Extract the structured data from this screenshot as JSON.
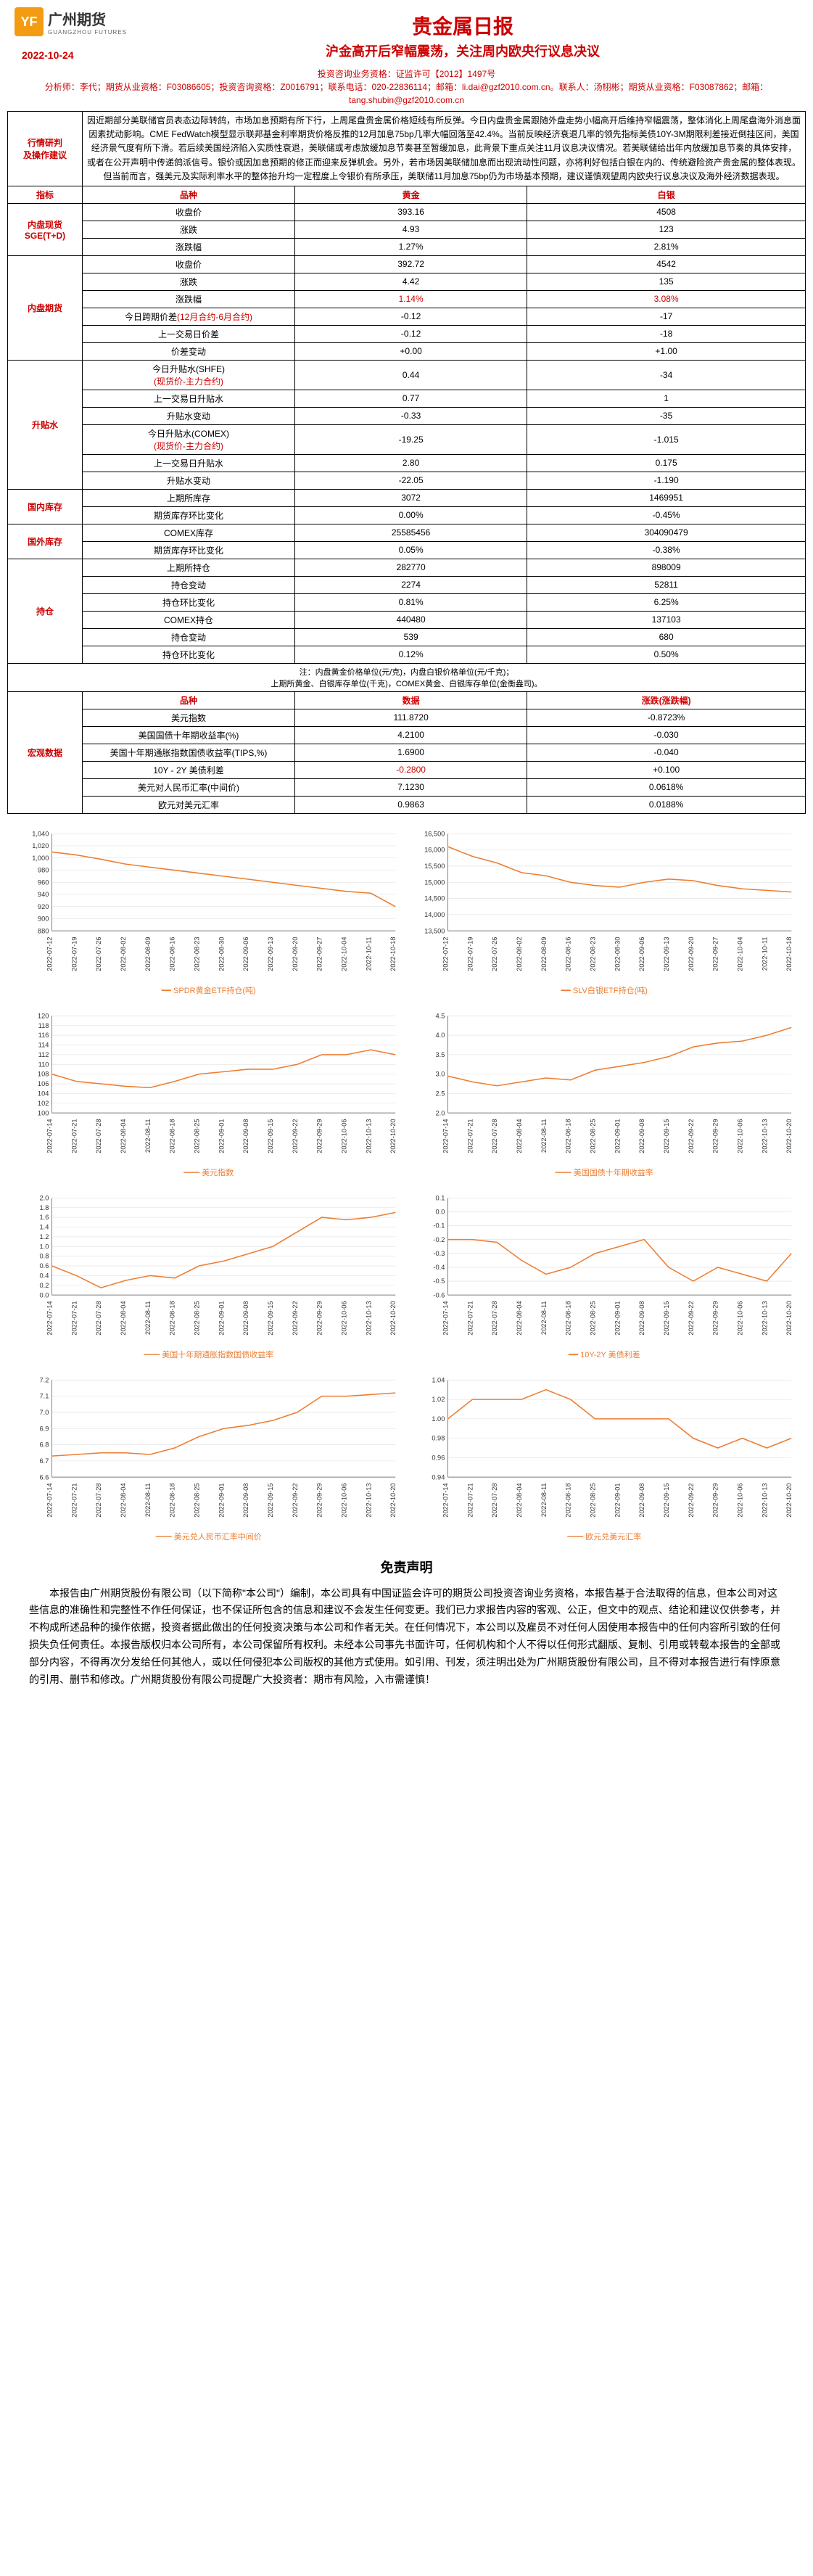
{
  "header": {
    "logo_text": "广州期货",
    "logo_sub": "GUANGZHOU FUTURES",
    "title_main": "贵金属日报",
    "title_sub": "沪金高开后窄幅震荡，关注周内欧央行议息决议",
    "date": "2022-10-24"
  },
  "contact": {
    "line1": "投资咨询业务资格：证监许可【2012】1497号",
    "line2": "分析师：李代；期货从业资格：F03086605；投资咨询资格：Z0016791；联系电话：020-22836114；邮箱：li.dai@gzf2010.com.cn。联系人：汤栩彬；期货从业资格：F03087862；邮箱：tang.shubin@gzf2010.com.cn"
  },
  "sections": {
    "analysis_label": "行情研判\n及操作建议",
    "analysis_text": "因近期部分美联储官员表态边际转鸽，市场加息预期有所下行，上周尾盘贵金属价格短线有所反弹。今日内盘贵金属跟随外盘走势小幅高开后维持窄幅震荡，整体消化上周尾盘海外消息面因素扰动影响。CME FedWatch模型显示联邦基金利率期货价格反推的12月加息75bp几率大幅回落至42.4%。当前反映经济衰退几率的领先指标美债10Y-3M期限利差接近倒挂区间，美国经济景气度有所下滑。若后续美国经济陷入实质性衰退，美联储或考虑放缓加息节奏甚至暂缓加息，此背景下重点关注11月议息决议情况。若美联储给出年内放缓加息节奏的具体安排，或者在公开声明中传递鸽派信号。银价或因加息预期的修正而迎来反弹机会。另外，若市场因美联储加息而出现流动性问题，亦将利好包括白银在内的、传统避险资产贵金属的整体表现。但当前而言，强美元及实际利率水平的整体抬升均一定程度上令银价有所承压，美联储11月加息75bp仍为市场基本预期，建议谨慎观望周内欧央行议息决议及海外经济数据表现。",
    "indicator_label": "指标",
    "spot_label": "内盘现货\nSGE(T+D)",
    "futures_label": "内盘期货",
    "basis_label": "升贴水",
    "domestic_inv_label": "国内库存",
    "overseas_inv_label": "国外库存",
    "position_label": "持仓",
    "macro_label": "宏观数据"
  },
  "table_headers": {
    "variety": "品种",
    "gold": "黄金",
    "silver": "白银",
    "data": "数据",
    "change": "涨跌(涨跌幅)"
  },
  "spot_rows": [
    {
      "name": "收盘价",
      "gold": "393.16",
      "silver": "4508"
    },
    {
      "name": "涨跌",
      "gold": "4.93",
      "silver": "123"
    },
    {
      "name": "涨跌幅",
      "gold": "1.27%",
      "silver": "2.81%"
    }
  ],
  "futures_rows": [
    {
      "name": "收盘价",
      "gold": "392.72",
      "silver": "4542"
    },
    {
      "name": "涨跌",
      "gold": "4.42",
      "silver": "135"
    },
    {
      "name": "涨跌幅",
      "gold": "1.14%",
      "silver": "3.08%",
      "red": true
    },
    {
      "name": "今日跨期价差(12月合约-6月合约)",
      "gold": "-0.12",
      "silver": "-17",
      "name_red": true
    },
    {
      "name": "上一交易日价差",
      "gold": "-0.12",
      "silver": "-18"
    },
    {
      "name": "价差变动",
      "gold": "+0.00",
      "silver": "+1.00"
    }
  ],
  "basis_rows": [
    {
      "name": "今日升贴水(SHFE)\n(现货价-主力合约)",
      "gold": "0.44",
      "silver": "-34",
      "name_red_partial": true
    },
    {
      "name": "上一交易日升贴水",
      "gold": "0.77",
      "silver": "1"
    },
    {
      "name": "升贴水变动",
      "gold": "-0.33",
      "silver": "-35"
    },
    {
      "name": "今日升贴水(COMEX)\n(现货价-主力合约)",
      "gold": "-19.25",
      "silver": "-1.015",
      "name_red_partial": true
    },
    {
      "name": "上一交易日升贴水",
      "gold": "2.80",
      "silver": "0.175"
    },
    {
      "name": "升贴水变动",
      "gold": "-22.05",
      "silver": "-1.190"
    }
  ],
  "domestic_inv_rows": [
    {
      "name": "上期所库存",
      "gold": "3072",
      "silver": "1469951"
    },
    {
      "name": "期货库存环比变化",
      "gold": "0.00%",
      "silver": "-0.45%"
    }
  ],
  "overseas_inv_rows": [
    {
      "name": "COMEX库存",
      "gold": "25585456",
      "silver": "304090479"
    },
    {
      "name": "期货库存环比变化",
      "gold": "0.05%",
      "silver": "-0.38%"
    }
  ],
  "position_rows": [
    {
      "name": "上期所持仓",
      "gold": "282770",
      "silver": "898009"
    },
    {
      "name": "持仓变动",
      "gold": "2274",
      "silver": "52811"
    },
    {
      "name": "持仓环比变化",
      "gold": "0.81%",
      "silver": "6.25%"
    },
    {
      "name": "COMEX持仓",
      "gold": "440480",
      "silver": "137103"
    },
    {
      "name": "持仓变动",
      "gold": "539",
      "silver": "680"
    },
    {
      "name": "持仓环比变化",
      "gold": "0.12%",
      "silver": "0.50%"
    }
  ],
  "note_text": "注：内盘黄金价格单位(元/克)，内盘白银价格单位(元/千克)；\n上期所黄金、白银库存单位(千克)，COMEX黄金、白银库存单位(金衡盎司)。",
  "macro_rows": [
    {
      "name": "美元指数",
      "data": "111.8720",
      "change": "-0.8723%"
    },
    {
      "name": "美国国债十年期收益率(%)",
      "data": "4.2100",
      "change": "-0.030"
    },
    {
      "name": "美国十年期通胀指数国债收益率(TIPS,%)",
      "data": "1.6900",
      "change": "-0.040"
    },
    {
      "name": "10Y - 2Y 美债利差",
      "data": "-0.2800",
      "change": "+0.100",
      "data_red": true
    },
    {
      "name": "美元对人民币汇率(中间价)",
      "data": "7.1230",
      "change": "0.0618%"
    },
    {
      "name": "欧元对美元汇率",
      "data": "0.9863",
      "change": "0.0188%"
    }
  ],
  "charts": [
    {
      "title": "SPDR黄金ETF持仓(吨)",
      "y_ticks": [
        "880",
        "900",
        "920",
        "940",
        "960",
        "980",
        "1,000",
        "1,020",
        "1,040"
      ],
      "ylim": [
        880,
        1040
      ],
      "x_dates": [
        "2022-07-12",
        "2022-07-19",
        "2022-07-26",
        "2022-08-02",
        "2022-08-09",
        "2022-08-16",
        "2022-08-23",
        "2022-08-30",
        "2022-09-06",
        "2022-09-13",
        "2022-09-20",
        "2022-09-27",
        "2022-10-04",
        "2022-10-11",
        "2022-10-18"
      ],
      "data": [
        1010,
        1005,
        998,
        990,
        985,
        980,
        975,
        970,
        965,
        960,
        955,
        950,
        945,
        942,
        920
      ],
      "color": "#ed7d31"
    },
    {
      "title": "SLV白银ETF持仓(吨)",
      "y_ticks": [
        "13,500",
        "14,000",
        "14,500",
        "15,000",
        "15,500",
        "16,000",
        "16,500"
      ],
      "ylim": [
        13500,
        16500
      ],
      "x_dates": [
        "2022-07-12",
        "2022-07-19",
        "2022-07-26",
        "2022-08-02",
        "2022-08-09",
        "2022-08-16",
        "2022-08-23",
        "2022-08-30",
        "2022-09-06",
        "2022-09-13",
        "2022-09-20",
        "2022-09-27",
        "2022-10-04",
        "2022-10-11",
        "2022-10-18"
      ],
      "data": [
        16100,
        15800,
        15600,
        15300,
        15200,
        15000,
        14900,
        14850,
        15000,
        15100,
        15050,
        14900,
        14800,
        14750,
        14700
      ],
      "color": "#ed7d31"
    },
    {
      "title": "美元指数",
      "y_ticks": [
        "100",
        "102",
        "104",
        "106",
        "108",
        "110",
        "112",
        "114",
        "116",
        "118",
        "120"
      ],
      "ylim": [
        100,
        120
      ],
      "x_dates": [
        "2022-07-14",
        "2022-07-21",
        "2022-07-28",
        "2022-08-04",
        "2022-08-11",
        "2022-08-18",
        "2022-08-25",
        "2022-09-01",
        "2022-09-08",
        "2022-09-15",
        "2022-09-22",
        "2022-09-29",
        "2022-10-06",
        "2022-10-13",
        "2022-10-20"
      ],
      "data": [
        108,
        106.5,
        106,
        105.5,
        105.2,
        106.5,
        108,
        108.5,
        109,
        109,
        110,
        112,
        112,
        113,
        112
      ],
      "color": "#ed7d31"
    },
    {
      "title": "美国国债十年期收益率",
      "y_ticks": [
        "2.0",
        "2.5",
        "3.0",
        "3.5",
        "4.0",
        "4.5"
      ],
      "ylim": [
        2.0,
        4.5
      ],
      "x_dates": [
        "2022-07-14",
        "2022-07-21",
        "2022-07-28",
        "2022-08-04",
        "2022-08-11",
        "2022-08-18",
        "2022-08-25",
        "2022-09-01",
        "2022-09-08",
        "2022-09-15",
        "2022-09-22",
        "2022-09-29",
        "2022-10-06",
        "2022-10-13",
        "2022-10-20"
      ],
      "data": [
        2.95,
        2.8,
        2.7,
        2.8,
        2.9,
        2.85,
        3.1,
        3.2,
        3.3,
        3.45,
        3.7,
        3.8,
        3.85,
        4.0,
        4.2
      ],
      "color": "#ed7d31"
    },
    {
      "title": "美国十年期通胀指数国债收益率",
      "y_ticks": [
        "0.0",
        "0.2",
        "0.4",
        "0.6",
        "0.8",
        "1.0",
        "1.2",
        "1.4",
        "1.6",
        "1.8",
        "2.0"
      ],
      "ylim": [
        0.0,
        2.0
      ],
      "x_dates": [
        "2022-07-14",
        "2022-07-21",
        "2022-07-28",
        "2022-08-04",
        "2022-08-11",
        "2022-08-18",
        "2022-08-25",
        "2022-09-01",
        "2022-09-08",
        "2022-09-15",
        "2022-09-22",
        "2022-09-29",
        "2022-10-06",
        "2022-10-13",
        "2022-10-20"
      ],
      "data": [
        0.6,
        0.4,
        0.15,
        0.3,
        0.4,
        0.35,
        0.6,
        0.7,
        0.85,
        1.0,
        1.3,
        1.6,
        1.55,
        1.6,
        1.7
      ],
      "color": "#ed7d31"
    },
    {
      "title": "10Y-2Y 美债利差",
      "y_ticks": [
        "-0.6",
        "-0.5",
        "-0.4",
        "-0.3",
        "-0.2",
        "-0.1",
        "0.0",
        "0.1"
      ],
      "ylim": [
        -0.6,
        0.1
      ],
      "x_dates": [
        "2022-07-14",
        "2022-07-21",
        "2022-07-28",
        "2022-08-04",
        "2022-08-11",
        "2022-08-18",
        "2022-08-25",
        "2022-09-01",
        "2022-09-08",
        "2022-09-15",
        "2022-09-22",
        "2022-09-29",
        "2022-10-06",
        "2022-10-13",
        "2022-10-20"
      ],
      "data": [
        -0.2,
        -0.2,
        -0.22,
        -0.35,
        -0.45,
        -0.4,
        -0.3,
        -0.25,
        -0.2,
        -0.4,
        -0.5,
        -0.4,
        -0.45,
        -0.5,
        -0.3
      ],
      "color": "#ed7d31"
    },
    {
      "title": "美元兑人民币汇率中间价",
      "y_ticks": [
        "6.6",
        "6.7",
        "6.8",
        "6.9",
        "7.0",
        "7.1",
        "7.2"
      ],
      "ylim": [
        6.6,
        7.2
      ],
      "x_dates": [
        "2022-07-14",
        "2022-07-21",
        "2022-07-28",
        "2022-08-04",
        "2022-08-11",
        "2022-08-18",
        "2022-08-25",
        "2022-09-01",
        "2022-09-08",
        "2022-09-15",
        "2022-09-22",
        "2022-09-29",
        "2022-10-06",
        "2022-10-13",
        "2022-10-20"
      ],
      "data": [
        6.73,
        6.74,
        6.75,
        6.75,
        6.74,
        6.78,
        6.85,
        6.9,
        6.92,
        6.95,
        7.0,
        7.1,
        7.1,
        7.11,
        7.12
      ],
      "color": "#ed7d31"
    },
    {
      "title": "欧元兑美元汇率",
      "y_ticks": [
        "0.94",
        "0.96",
        "0.98",
        "1.00",
        "1.02",
        "1.04"
      ],
      "ylim": [
        0.94,
        1.04
      ],
      "x_dates": [
        "2022-07-14",
        "2022-07-21",
        "2022-07-28",
        "2022-08-04",
        "2022-08-11",
        "2022-08-18",
        "2022-08-25",
        "2022-09-01",
        "2022-09-08",
        "2022-09-15",
        "2022-09-22",
        "2022-09-29",
        "2022-10-06",
        "2022-10-13",
        "2022-10-20"
      ],
      "data": [
        1.0,
        1.02,
        1.02,
        1.02,
        1.03,
        1.02,
        1.0,
        1.0,
        1.0,
        1.0,
        0.98,
        0.97,
        0.98,
        0.97,
        0.98
      ],
      "color": "#ed7d31"
    }
  ],
  "disclaimer": {
    "title": "免责声明",
    "text": "本报告由广州期货股份有限公司（以下简称\"本公司\"）编制，本公司具有中国证监会许可的期货公司投资咨询业务资格，本报告基于合法取得的信息，但本公司对这些信息的准确性和完整性不作任何保证，也不保证所包含的信息和建议不会发生任何变更。我们已力求报告内容的客观、公正，但文中的观点、结论和建议仅供参考，并不构成所述品种的操作依据，投资者据此做出的任何投资决策与本公司和作者无关。在任何情况下，本公司以及雇员不对任何人因使用本报告中的任何内容所引致的任何损失负任何责任。本报告版权归本公司所有，本公司保留所有权利。未经本公司事先书面许可，任何机构和个人不得以任何形式翻版、复制、引用或转载本报告的全部或部分内容，不得再次分发给任何其他人，或以任何侵犯本公司版权的其他方式使用。如引用、刊发，须注明出处为广州期货股份有限公司，且不得对本报告进行有悖原意的引用、删节和修改。广州期货股份有限公司提醒广大投资者：期市有风险，入市需谨慎！"
  }
}
